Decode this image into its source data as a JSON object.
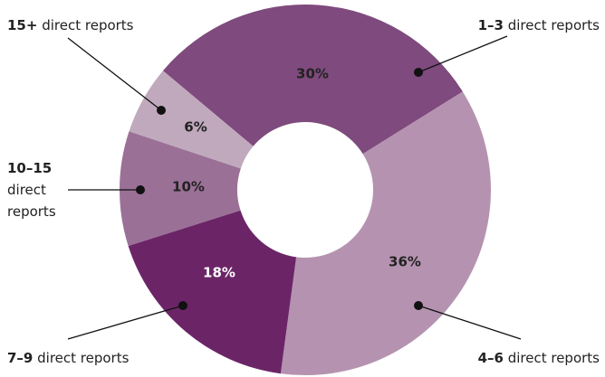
{
  "chart_data": {
    "type": "donut",
    "categories": [
      "1–3 direct reports",
      "4–6 direct reports",
      "7–9 direct reports",
      "10–15 direct reports",
      "15+ direct reports"
    ],
    "values": [
      30,
      36,
      18,
      10,
      6
    ],
    "value_labels": [
      "30%",
      "36%",
      "18%",
      "10%",
      "6%"
    ],
    "colors": [
      "#7f4a7d",
      "#b593b0",
      "#6b2567",
      "#9b7097",
      "#c0a9bd"
    ]
  }
}
